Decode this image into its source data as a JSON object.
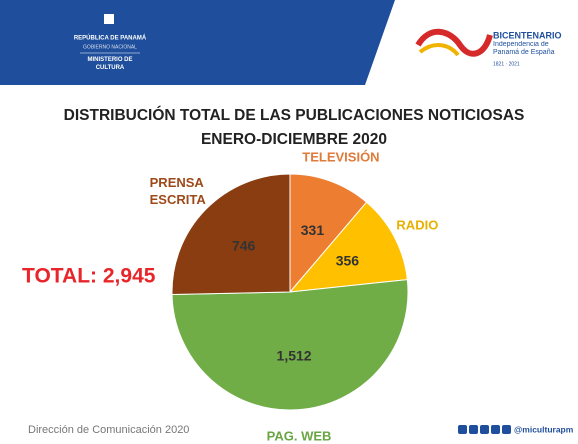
{
  "header": {
    "country": "REPÚBLICA DE PANAMÁ",
    "government": "GOBIERNO NACIONAL",
    "ministry": "MINISTERIO DE CULTURA",
    "logo_title": "BICENTENARIO",
    "logo_subtitle": "Independencia de Panamá de España",
    "logo_years": "1821 · 2021"
  },
  "chart_data": {
    "type": "pie",
    "title": "DISTRIBUCIÓN TOTAL DE LAS PUBLICACIONES NOTICIOSAS",
    "subtitle": "ENERO-DICIEMBRE 2020",
    "categories": [
      "TELEVISIÓN",
      "RADIO",
      "PAG. WEB",
      "PRENSA ESCRITA"
    ],
    "values": [
      331,
      356,
      1512,
      746
    ],
    "value_labels": [
      "331",
      "356",
      "1,512",
      "746"
    ],
    "colors": [
      "#ed7d31",
      "#ffc000",
      "#70ad47",
      "#8a3d10"
    ],
    "label_colors": [
      "#e07b39",
      "#e8b000",
      "#6aa544",
      "#9c4a1a"
    ],
    "annotation": "TOTAL: 2,945"
  },
  "footer": {
    "left": "Dirección de Comunicación 2020",
    "right": "@miculturapm"
  }
}
